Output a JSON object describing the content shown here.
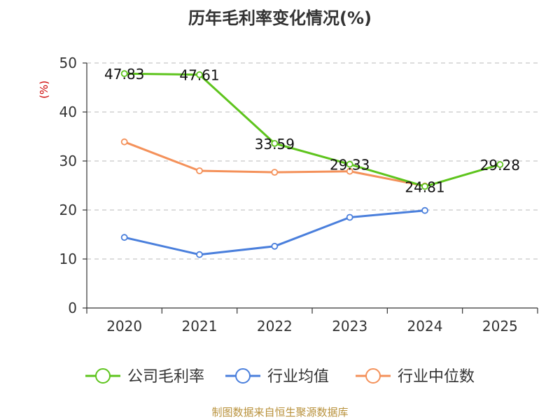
{
  "chart_data": {
    "type": "line",
    "title": "历年毛利率变化情况(%)",
    "ylabel": "(%)",
    "xlabel": "",
    "categories": [
      "2020",
      "2021",
      "2022",
      "2023",
      "2024",
      "2025"
    ],
    "ylim": [
      0,
      50
    ],
    "yticks": [
      0,
      10,
      20,
      30,
      40,
      50
    ],
    "grid": true,
    "legend_position": "bottom",
    "series": [
      {
        "name": "公司毛利率",
        "color": "#5ec41d",
        "values": [
          47.83,
          47.61,
          33.59,
          29.33,
          24.81,
          29.28
        ],
        "labels": [
          "47.83",
          "47.61",
          "33.59",
          "29.33",
          "24.81",
          "29.28"
        ]
      },
      {
        "name": "行业均值",
        "color": "#4a7fdc",
        "values": [
          14.4,
          10.9,
          12.6,
          18.5,
          19.9,
          null
        ]
      },
      {
        "name": "行业中位数",
        "color": "#f4915a",
        "values": [
          33.9,
          28.0,
          27.7,
          27.9,
          24.9,
          null
        ]
      }
    ]
  },
  "source": "制图数据来自恒生聚源数据库"
}
